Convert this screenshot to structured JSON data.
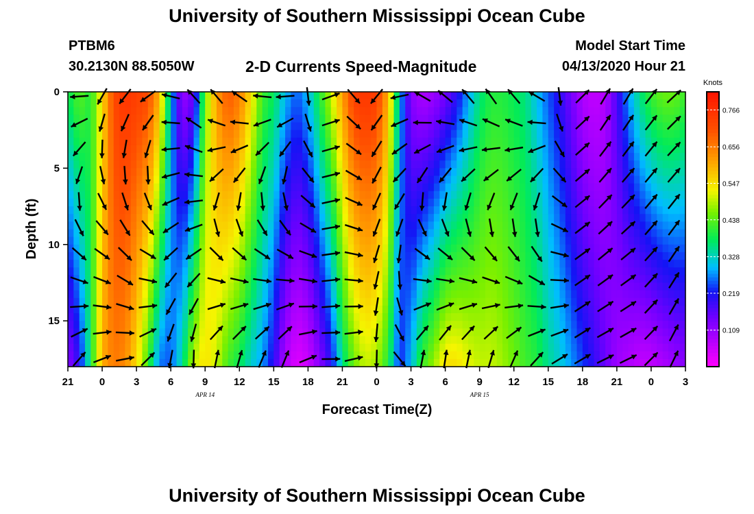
{
  "header": {
    "title": "University of Southern Mississippi Ocean Cube",
    "station": "PTBM6",
    "coords": "30.2130N 88.5050W",
    "subtitle": "2-D Currents Speed-Magnitude",
    "start_label": "Model Start Time",
    "start_time": "04/13/2020 Hour 21"
  },
  "footer": {
    "title": "University of Southern Mississippi Ocean Cube"
  },
  "chart_data": {
    "type": "heatmap",
    "title": "2-D Currents Speed-Magnitude",
    "xlabel": "Forecast Time(Z)",
    "ylabel": "Depth (ft)",
    "x_ticks": [
      "21",
      "0",
      "3",
      "6",
      "9",
      "12",
      "15",
      "18",
      "21",
      "0",
      "3",
      "6",
      "9",
      "12",
      "15",
      "18",
      "21",
      "0",
      "3"
    ],
    "date_labels": [
      {
        "text": "APR 14",
        "at_hour": 12
      },
      {
        "text": "APR 15",
        "at_hour": 36
      }
    ],
    "y_ticks": [
      0,
      5,
      10,
      15
    ],
    "ylim": [
      0,
      18
    ],
    "x_range_hours": [
      0,
      54
    ],
    "colorbar": {
      "unit": "Knots",
      "ticks": [
        "0.766",
        "0.656",
        "0.547",
        "0.438",
        "0.328",
        "0.219",
        "0.109"
      ],
      "range": [
        0,
        0.82
      ]
    },
    "speed_profile": [
      {
        "hour": 0,
        "surface": 0.38,
        "bottom": 0.12
      },
      {
        "hour": 1,
        "surface": 0.44,
        "bottom": 0.2
      },
      {
        "hour": 2,
        "surface": 0.4,
        "bottom": 0.38
      },
      {
        "hour": 3,
        "surface": 0.55,
        "bottom": 0.6
      },
      {
        "hour": 4,
        "surface": 0.72,
        "bottom": 0.66
      },
      {
        "hour": 5,
        "surface": 0.76,
        "bottom": 0.64
      },
      {
        "hour": 6,
        "surface": 0.74,
        "bottom": 0.55
      },
      {
        "hour": 7,
        "surface": 0.72,
        "bottom": 0.42
      },
      {
        "hour": 8,
        "surface": 0.6,
        "bottom": 0.26
      },
      {
        "hour": 9,
        "surface": 0.3,
        "bottom": 0.25
      },
      {
        "hour": 10,
        "surface": 0.1,
        "bottom": 0.35
      },
      {
        "hour": 11,
        "surface": 0.15,
        "bottom": 0.5
      },
      {
        "hour": 12,
        "surface": 0.45,
        "bottom": 0.55
      },
      {
        "hour": 13,
        "surface": 0.62,
        "bottom": 0.5
      },
      {
        "hour": 14,
        "surface": 0.7,
        "bottom": 0.42
      },
      {
        "hour": 15,
        "surface": 0.66,
        "bottom": 0.38
      },
      {
        "hour": 16,
        "surface": 0.55,
        "bottom": 0.32
      },
      {
        "hour": 17,
        "surface": 0.42,
        "bottom": 0.28
      },
      {
        "hour": 18,
        "surface": 0.38,
        "bottom": 0.2
      },
      {
        "hour": 19,
        "surface": 0.3,
        "bottom": 0.08
      },
      {
        "hour": 20,
        "surface": 0.25,
        "bottom": 0.03
      },
      {
        "hour": 21,
        "surface": 0.3,
        "bottom": 0.05
      },
      {
        "hour": 22,
        "surface": 0.4,
        "bottom": 0.12
      },
      {
        "hour": 23,
        "surface": 0.5,
        "bottom": 0.2
      },
      {
        "hour": 24,
        "surface": 0.62,
        "bottom": 0.35
      },
      {
        "hour": 25,
        "surface": 0.74,
        "bottom": 0.45
      },
      {
        "hour": 26,
        "surface": 0.76,
        "bottom": 0.5
      },
      {
        "hour": 27,
        "surface": 0.74,
        "bottom": 0.48
      },
      {
        "hour": 28,
        "surface": 0.6,
        "bottom": 0.4
      },
      {
        "hour": 29,
        "surface": 0.3,
        "bottom": 0.22
      },
      {
        "hour": 30,
        "surface": 0.12,
        "bottom": 0.3
      },
      {
        "hour": 31,
        "surface": 0.08,
        "bottom": 0.42
      },
      {
        "hour": 32,
        "surface": 0.1,
        "bottom": 0.48
      },
      {
        "hour": 33,
        "surface": 0.14,
        "bottom": 0.55
      },
      {
        "hour": 34,
        "surface": 0.2,
        "bottom": 0.55
      },
      {
        "hour": 35,
        "surface": 0.28,
        "bottom": 0.52
      },
      {
        "hour": 36,
        "surface": 0.36,
        "bottom": 0.5
      },
      {
        "hour": 37,
        "surface": 0.4,
        "bottom": 0.5
      },
      {
        "hour": 38,
        "surface": 0.4,
        "bottom": 0.48
      },
      {
        "hour": 39,
        "surface": 0.38,
        "bottom": 0.45
      },
      {
        "hour": 40,
        "surface": 0.36,
        "bottom": 0.42
      },
      {
        "hour": 41,
        "surface": 0.3,
        "bottom": 0.4
      },
      {
        "hour": 42,
        "surface": 0.25,
        "bottom": 0.35
      },
      {
        "hour": 43,
        "surface": 0.2,
        "bottom": 0.32
      },
      {
        "hour": 44,
        "surface": 0.14,
        "bottom": 0.28
      },
      {
        "hour": 45,
        "surface": 0.08,
        "bottom": 0.24
      },
      {
        "hour": 46,
        "surface": 0.06,
        "bottom": 0.2
      },
      {
        "hour": 47,
        "surface": 0.08,
        "bottom": 0.15
      },
      {
        "hour": 48,
        "surface": 0.18,
        "bottom": 0.1
      },
      {
        "hour": 49,
        "surface": 0.28,
        "bottom": 0.08
      },
      {
        "hour": 50,
        "surface": 0.36,
        "bottom": 0.06
      },
      {
        "hour": 51,
        "surface": 0.42,
        "bottom": 0.06
      },
      {
        "hour": 52,
        "surface": 0.45,
        "bottom": 0.08
      },
      {
        "hour": 53,
        "surface": 0.45,
        "bottom": 0.1
      },
      {
        "hour": 54,
        "surface": 0.42,
        "bottom": 0.12
      }
    ],
    "direction_deg": [
      {
        "hour": 0,
        "surface": 330,
        "bottom": 30
      },
      {
        "hour": 2,
        "surface": 210,
        "bottom": 40
      },
      {
        "hour": 4,
        "surface": 215,
        "bottom": 90
      },
      {
        "hour": 6,
        "surface": 225,
        "bottom": 60
      },
      {
        "hour": 8,
        "surface": 250,
        "bottom": 20
      },
      {
        "hour": 10,
        "surface": 320,
        "bottom": 355
      },
      {
        "hour": 12,
        "surface": 320,
        "bottom": 0
      },
      {
        "hour": 14,
        "surface": 330,
        "bottom": 5
      },
      {
        "hour": 16,
        "surface": 290,
        "bottom": 10
      },
      {
        "hour": 18,
        "surface": 270,
        "bottom": 20
      },
      {
        "hour": 20,
        "surface": 270,
        "bottom": 10
      },
      {
        "hour": 22,
        "surface": 80,
        "bottom": 120
      },
      {
        "hour": 24,
        "surface": 60,
        "bottom": 60
      },
      {
        "hour": 26,
        "surface": 220,
        "bottom": 90
      },
      {
        "hour": 28,
        "surface": 220,
        "bottom": 270
      },
      {
        "hour": 30,
        "surface": 300,
        "bottom": 5
      },
      {
        "hour": 32,
        "surface": 310,
        "bottom": 0
      },
      {
        "hour": 34,
        "surface": 320,
        "bottom": 0
      },
      {
        "hour": 36,
        "surface": 330,
        "bottom": 5
      },
      {
        "hour": 38,
        "surface": 330,
        "bottom": 10
      },
      {
        "hour": 40,
        "surface": 320,
        "bottom": 20
      },
      {
        "hour": 42,
        "surface": 290,
        "bottom": 50
      },
      {
        "hour": 44,
        "surface": 60,
        "bottom": 60
      },
      {
        "hour": 46,
        "surface": 30,
        "bottom": 60
      },
      {
        "hour": 48,
        "surface": 30,
        "bottom": 70
      },
      {
        "hour": 50,
        "surface": 30,
        "bottom": 60
      },
      {
        "hour": 52,
        "surface": 45,
        "bottom": 30
      },
      {
        "hour": 54,
        "surface": 50,
        "bottom": 20
      }
    ],
    "grid": false,
    "legend": "right"
  }
}
